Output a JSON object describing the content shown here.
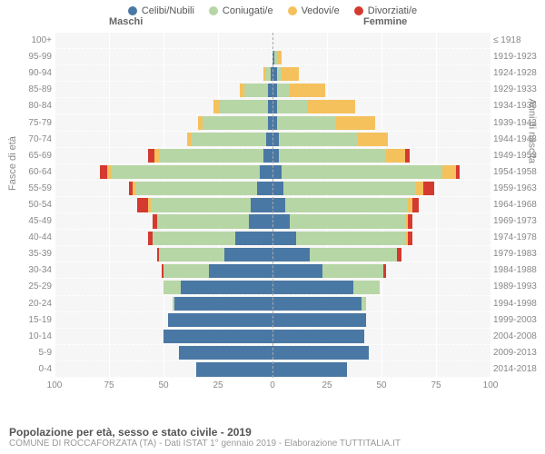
{
  "legend": [
    {
      "label": "Celibi/Nubili",
      "color": "#4a78a4"
    },
    {
      "label": "Coniugati/e",
      "color": "#b7d6a5"
    },
    {
      "label": "Vedovi/e",
      "color": "#f5c15d"
    },
    {
      "label": "Divorziati/e",
      "color": "#d43a2f"
    }
  ],
  "headers": {
    "male": "Maschi",
    "female": "Femmine"
  },
  "axis": {
    "left_title": "Fasce di età",
    "right_title": "Anni di nascita",
    "ticks": [
      100,
      75,
      50,
      25,
      0,
      25,
      50,
      75,
      100
    ],
    "xmin": -100,
    "xmax": 100
  },
  "footer": {
    "title": "Popolazione per età, sesso e stato civile - 2019",
    "sub": "COMUNE DI ROCCAFORZATA (TA) - Dati ISTAT 1° gennaio 2019 - Elaborazione TUTTITALIA.IT"
  },
  "colors": {
    "plot_bg": "#f6f6f6",
    "grid": "#ffffff",
    "center": "#aaaaaa",
    "text": "#888888"
  },
  "rows": [
    {
      "age": "100+",
      "birth": "≤ 1918",
      "m": [
        0,
        0,
        0,
        0
      ],
      "f": [
        0,
        0,
        0,
        0
      ]
    },
    {
      "age": "95-99",
      "birth": "1919-1923",
      "m": [
        0,
        0,
        0,
        0
      ],
      "f": [
        1,
        1,
        2,
        0
      ]
    },
    {
      "age": "90-94",
      "birth": "1924-1928",
      "m": [
        1,
        2,
        1,
        0
      ],
      "f": [
        2,
        2,
        8,
        0
      ]
    },
    {
      "age": "85-89",
      "birth": "1929-1933",
      "m": [
        2,
        11,
        2,
        0
      ],
      "f": [
        2,
        6,
        16,
        0
      ]
    },
    {
      "age": "80-84",
      "birth": "1934-1938",
      "m": [
        2,
        22,
        3,
        0
      ],
      "f": [
        2,
        14,
        22,
        0
      ]
    },
    {
      "age": "75-79",
      "birth": "1939-1943",
      "m": [
        2,
        30,
        2,
        0
      ],
      "f": [
        2,
        27,
        18,
        0
      ]
    },
    {
      "age": "70-74",
      "birth": "1944-1948",
      "m": [
        3,
        34,
        2,
        0
      ],
      "f": [
        3,
        36,
        14,
        0
      ]
    },
    {
      "age": "65-69",
      "birth": "1949-1953",
      "m": [
        4,
        48,
        2,
        3
      ],
      "f": [
        3,
        49,
        9,
        2
      ]
    },
    {
      "age": "60-64",
      "birth": "1954-1958",
      "m": [
        6,
        68,
        2,
        3
      ],
      "f": [
        4,
        74,
        6,
        2
      ]
    },
    {
      "age": "55-59",
      "birth": "1959-1963",
      "m": [
        7,
        56,
        1,
        2
      ],
      "f": [
        5,
        61,
        3,
        5
      ]
    },
    {
      "age": "50-54",
      "birth": "1964-1968",
      "m": [
        10,
        46,
        1,
        5
      ],
      "f": [
        6,
        56,
        2,
        3
      ]
    },
    {
      "age": "45-49",
      "birth": "1969-1973",
      "m": [
        11,
        42,
        0,
        2
      ],
      "f": [
        8,
        53,
        1,
        2
      ]
    },
    {
      "age": "40-44",
      "birth": "1974-1978",
      "m": [
        17,
        38,
        0,
        2
      ],
      "f": [
        11,
        50,
        1,
        2
      ]
    },
    {
      "age": "35-39",
      "birth": "1979-1983",
      "m": [
        22,
        30,
        0,
        1
      ],
      "f": [
        17,
        40,
        0,
        2
      ]
    },
    {
      "age": "30-34",
      "birth": "1984-1988",
      "m": [
        29,
        21,
        0,
        1
      ],
      "f": [
        23,
        28,
        0,
        1
      ]
    },
    {
      "age": "25-29",
      "birth": "1989-1993",
      "m": [
        42,
        8,
        0,
        0
      ],
      "f": [
        37,
        12,
        0,
        0
      ]
    },
    {
      "age": "20-24",
      "birth": "1994-1998",
      "m": [
        45,
        1,
        0,
        0
      ],
      "f": [
        41,
        2,
        0,
        0
      ]
    },
    {
      "age": "15-19",
      "birth": "1999-2003",
      "m": [
        48,
        0,
        0,
        0
      ],
      "f": [
        43,
        0,
        0,
        0
      ]
    },
    {
      "age": "10-14",
      "birth": "2004-2008",
      "m": [
        50,
        0,
        0,
        0
      ],
      "f": [
        42,
        0,
        0,
        0
      ]
    },
    {
      "age": "5-9",
      "birth": "2009-2013",
      "m": [
        43,
        0,
        0,
        0
      ],
      "f": [
        44,
        0,
        0,
        0
      ]
    },
    {
      "age": "0-4",
      "birth": "2014-2018",
      "m": [
        35,
        0,
        0,
        0
      ],
      "f": [
        34,
        0,
        0,
        0
      ]
    }
  ]
}
